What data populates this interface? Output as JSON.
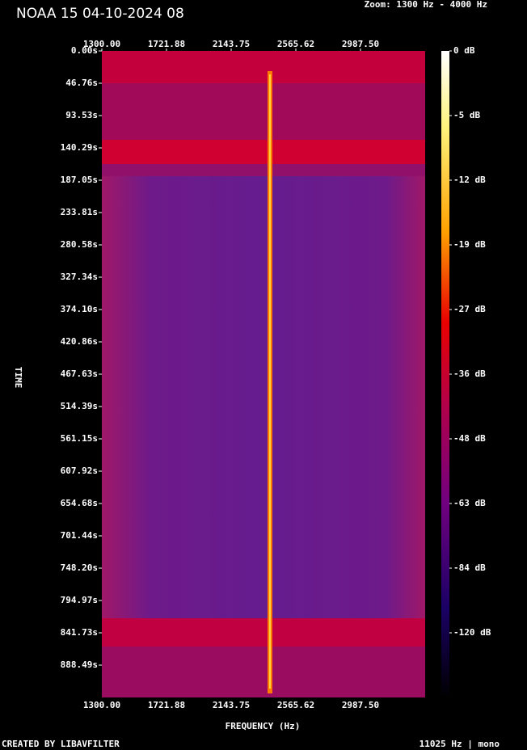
{
  "chart_data": {
    "type": "spectrogram",
    "title": "NOAA 15 04-10-2024 08",
    "subtitle": "Zoom: 1300 Hz - 4000 Hz",
    "xlabel": "FREQUENCY (Hz)",
    "ylabel": "TIME",
    "xlim": [
      1300,
      3409.375
    ],
    "xticks": [
      {
        "value": 1300,
        "label": "1300.00"
      },
      {
        "value": 1721.88,
        "label": "1721.88"
      },
      {
        "value": 2143.75,
        "label": "2143.75"
      },
      {
        "value": 2565.62,
        "label": "2565.62"
      },
      {
        "value": 2987.5,
        "label": "2987.50"
      }
    ],
    "ylim": [
      0,
      935.25
    ],
    "yticks": [
      {
        "value": 0,
        "label": "0.00s"
      },
      {
        "value": 46.76,
        "label": "46.76s"
      },
      {
        "value": 93.53,
        "label": "93.53s"
      },
      {
        "value": 140.29,
        "label": "140.29s"
      },
      {
        "value": 187.05,
        "label": "187.05s"
      },
      {
        "value": 233.81,
        "label": "233.81s"
      },
      {
        "value": 280.58,
        "label": "280.58s"
      },
      {
        "value": 327.34,
        "label": "327.34s"
      },
      {
        "value": 374.1,
        "label": "374.10s"
      },
      {
        "value": 420.86,
        "label": "420.86s"
      },
      {
        "value": 467.63,
        "label": "467.63s"
      },
      {
        "value": 514.39,
        "label": "514.39s"
      },
      {
        "value": 561.15,
        "label": "561.15s"
      },
      {
        "value": 607.92,
        "label": "607.92s"
      },
      {
        "value": 654.68,
        "label": "654.68s"
      },
      {
        "value": 701.44,
        "label": "701.44s"
      },
      {
        "value": 748.2,
        "label": "748.20s"
      },
      {
        "value": 794.97,
        "label": "794.97s"
      },
      {
        "value": 841.73,
        "label": "841.73s"
      },
      {
        "value": 888.49,
        "label": "888.49s"
      }
    ],
    "colorbar_ticks": [
      {
        "value": 0,
        "label": "0 dB"
      },
      {
        "value": -5,
        "label": "-5 dB"
      },
      {
        "value": -12,
        "label": "-12 dB"
      },
      {
        "value": -19,
        "label": "-19 dB"
      },
      {
        "value": -27,
        "label": "-27 dB"
      },
      {
        "value": -36,
        "label": "-36 dB"
      },
      {
        "value": -48,
        "label": "-48 dB"
      },
      {
        "value": -63,
        "label": "-63 dB"
      },
      {
        "value": -84,
        "label": "-84 dB"
      },
      {
        "value": -120,
        "label": "-120 dB"
      }
    ],
    "footer_left": "CREATED BY LIBAVFILTER",
    "footer_right": "11025 Hz | mono"
  }
}
